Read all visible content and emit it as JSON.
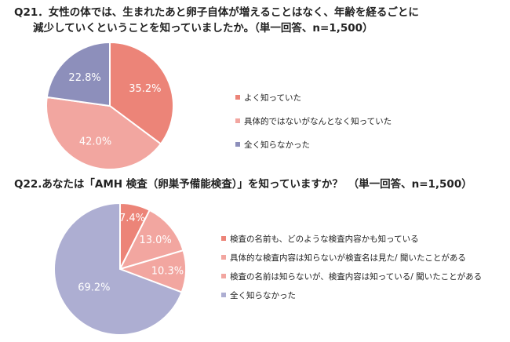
{
  "colors": {
    "salmon": "#ec8478",
    "light_salmon": "#f2a6a0",
    "slate_purple": "#8d8fbb",
    "lavender": "#adaed2"
  },
  "q21": {
    "title_line1": "Q21．女性の体では、生まれたあと卵子自体が増えることはなく、年齢を経るごとに",
    "title_line2": "減少していくということを知っていましたか。（単一回答、n=1,500）"
  },
  "q22": {
    "title": "Q22.あなたは「AMH 検査（卵巣予備能検査）」を知っていますか？　（単一回答、n=1,500）"
  },
  "chart_data": [
    {
      "type": "pie",
      "title": "Q21．女性の体では、生まれたあと卵子自体が増えることはなく、年齢を経るごとに減少していくということを知っていましたか。（単一回答、n=1,500）",
      "categories": [
        "よく知っていた",
        "具体的ではないがなんとなく知っていた",
        "全く知らなかった"
      ],
      "values": [
        35.2,
        42.0,
        22.8
      ],
      "value_labels": [
        "35.2%",
        "42.0%",
        "22.8%"
      ],
      "colors": [
        "#ec8478",
        "#f2a6a0",
        "#8d8fbb"
      ],
      "legend": "right"
    },
    {
      "type": "pie",
      "title": "Q22.あなたは「AMH 検査（卵巣予備能検査）」を知っていますか？　（単一回答、n=1,500）",
      "categories": [
        "検査の名前も、どのような検査内容かも知っている",
        "具体的な検査内容は知らないが検査名は見た/ 聞いたことがある",
        "検査の名前は知らないが、検査内容は知っている/ 聞いたことがある",
        "全く知らなかった"
      ],
      "values": [
        7.4,
        13.0,
        10.3,
        69.2
      ],
      "value_labels": [
        "7.4%",
        "13.0%",
        "10.3%",
        "69.2%"
      ],
      "colors": [
        "#ec8478",
        "#f2a6a0",
        "#f2a6a0",
        "#adaed2"
      ],
      "legend": "right"
    }
  ]
}
